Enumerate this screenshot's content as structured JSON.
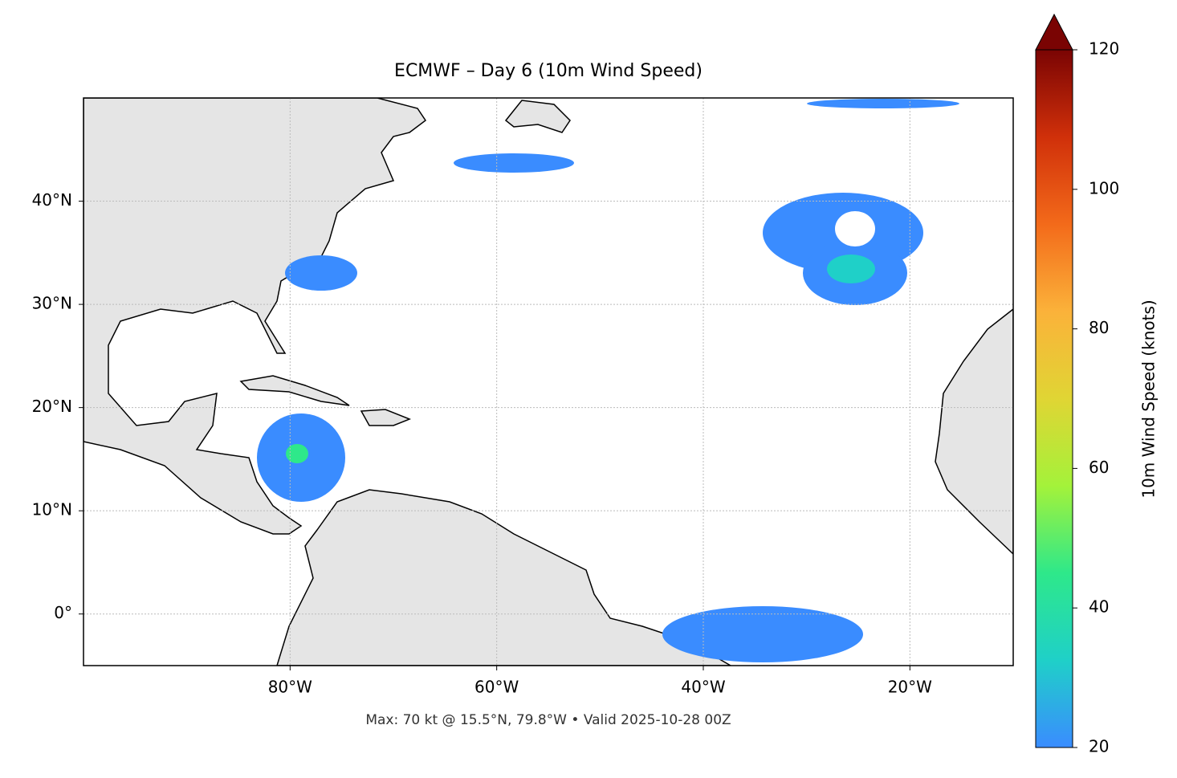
{
  "chart_data": {
    "type": "map",
    "title": "ECMWF – Day 6 (10m Wind Speed)",
    "footer": "Max: 70 kt @ 15.5°N, 79.8°W • Valid 2025-10-28 00Z",
    "xlim": [
      -100,
      -10
    ],
    "ylim": [
      -5,
      50
    ],
    "xticks": [
      {
        "value": -80,
        "label": "80°W"
      },
      {
        "value": -60,
        "label": "60°W"
      },
      {
        "value": -40,
        "label": "40°W"
      },
      {
        "value": -20,
        "label": "20°W"
      }
    ],
    "yticks": [
      {
        "value": 0,
        "label": "0°"
      },
      {
        "value": 10,
        "label": "10°N"
      },
      {
        "value": 20,
        "label": "20°N"
      },
      {
        "value": 30,
        "label": "30°N"
      },
      {
        "value": 40,
        "label": "40°N"
      }
    ],
    "grid": true,
    "colorbar": {
      "label": "10m Wind Speed (knots)",
      "lim": [
        20,
        120
      ],
      "ticks": [
        20,
        40,
        60,
        80,
        100,
        120
      ],
      "colors": [
        "#3a8cff",
        "#1fd0c8",
        "#2ee88a",
        "#a4f23a",
        "#e0d534",
        "#fbb23a",
        "#f36a1a",
        "#d0300a",
        "#7a0403"
      ]
    }
  }
}
